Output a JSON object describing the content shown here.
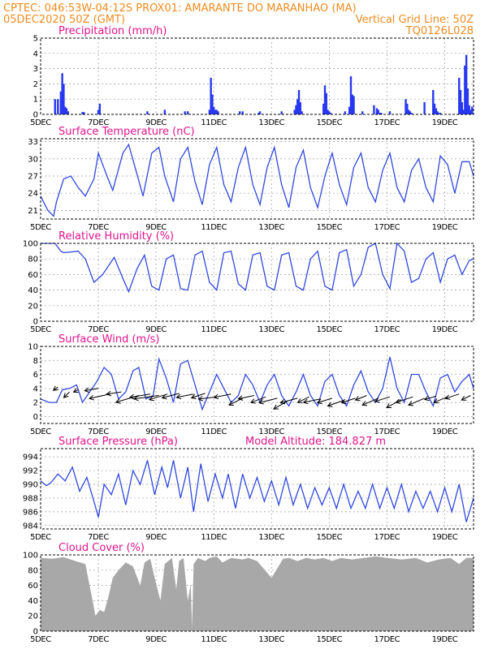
{
  "header": {
    "left_line1": "CPTEC:  046:53W-04:12S   PROX01: AMARANTE DO MARANHAO (MA)",
    "left_line2": "05DEC2020 50Z (GMT)",
    "right_line2": "Vertical Grid Line: 50Z",
    "right_line3": "TQ0126L028"
  },
  "colors": {
    "header": "#f08c1e",
    "panel_title": "#e0148c",
    "series": "#3048e0",
    "bars": "#2838f0",
    "cloud": "#a8a8a8"
  },
  "x_axis": {
    "ticks": [
      "5DEC",
      "7DEC",
      "9DEC",
      "11DEC",
      "13DEC",
      "15DEC",
      "17DEC",
      "19DEC"
    ],
    "range_days": [
      5.0,
      20.0
    ]
  },
  "chart_data": [
    {
      "id": "precip",
      "type": "bar",
      "title": "Precipitation (mm/h)",
      "ylim": [
        0,
        5
      ],
      "yticks": [
        0,
        1,
        2,
        3,
        4,
        5
      ],
      "series": [
        {
          "x": [
            5.5,
            5.6,
            5.7,
            5.75,
            5.8,
            5.85,
            5.9,
            5.95,
            6.45,
            6.5,
            7.0,
            7.05,
            8.7,
            9.3,
            10.0,
            10.1,
            10.85,
            10.9,
            10.95,
            11.0,
            11.05,
            11.1,
            11.15,
            11.9,
            12.0,
            12.55,
            12.6,
            13.35,
            13.8,
            13.85,
            13.9,
            13.95,
            14.0,
            14.05,
            14.8,
            14.85,
            14.9,
            14.95,
            15.0,
            15.05,
            15.55,
            15.7,
            15.75,
            15.8,
            15.85,
            16.15,
            16.55,
            16.65,
            16.7,
            16.75,
            16.8,
            17.1,
            17.65,
            17.7,
            17.75,
            17.8,
            17.85,
            18.3,
            18.6,
            18.65,
            18.7,
            18.75,
            18.8,
            18.85,
            19.5,
            19.55,
            19.6,
            19.65,
            19.7,
            19.75,
            19.8,
            19.85,
            19.9,
            19.95
          ],
          "values": [
            1.0,
            1.0,
            1.5,
            2.7,
            2.0,
            0.5,
            0.4,
            0.2,
            0.15,
            0.15,
            0.3,
            0.7,
            0.2,
            0.3,
            0.2,
            0.2,
            0.3,
            2.4,
            1.3,
            0.5,
            0.3,
            0.3,
            0.2,
            0.2,
            0.2,
            0.1,
            0.2,
            0.2,
            0.3,
            0.6,
            1.0,
            1.6,
            0.8,
            0.2,
            0.7,
            1.9,
            1.4,
            0.3,
            0.2,
            0.1,
            0.2,
            0.5,
            2.5,
            1.3,
            1.2,
            0.2,
            0.6,
            0.4,
            0.3,
            0.1,
            0.1,
            0.2,
            1.0,
            0.7,
            0.3,
            0.2,
            0.1,
            0.8,
            1.6,
            0.7,
            0.4,
            0.2,
            0.1,
            0.1,
            2.4,
            1.6,
            0.8,
            0.3,
            3.2,
            3.9,
            1.7,
            0.6,
            0.3,
            0.5
          ]
        }
      ],
      "grid": true
    },
    {
      "id": "temp",
      "type": "line",
      "title": "Surface Temperature (nC)",
      "ylim": [
        19.5,
        33.5
      ],
      "yticks": [
        21,
        24,
        27,
        30,
        33
      ],
      "series": [
        {
          "x": [
            5.0,
            5.25,
            5.45,
            5.55,
            5.8,
            6.05,
            6.3,
            6.55,
            6.85,
            7.0,
            7.3,
            7.5,
            7.85,
            8.05,
            8.3,
            8.55,
            8.85,
            9.1,
            9.3,
            9.6,
            9.85,
            10.1,
            10.35,
            10.6,
            10.85,
            11.1,
            11.35,
            11.6,
            11.85,
            12.1,
            12.35,
            12.6,
            12.85,
            13.1,
            13.35,
            13.6,
            13.85,
            14.1,
            14.35,
            14.6,
            14.85,
            15.1,
            15.35,
            15.6,
            15.85,
            16.1,
            16.35,
            16.6,
            16.85,
            17.1,
            17.35,
            17.6,
            17.85,
            18.1,
            18.35,
            18.6,
            18.85,
            19.1,
            19.35,
            19.6,
            19.85,
            20.0
          ],
          "values": [
            23.5,
            21.0,
            20.0,
            22.5,
            26.5,
            27.0,
            25.0,
            23.5,
            26.5,
            31.0,
            27.0,
            24.5,
            31.0,
            32.5,
            28.0,
            23.5,
            31.0,
            32.0,
            27.0,
            22.5,
            30.0,
            32.0,
            26.0,
            22.0,
            29.0,
            32.0,
            25.5,
            22.5,
            28.5,
            32.0,
            25.5,
            22.0,
            28.5,
            32.0,
            25.5,
            21.5,
            28.5,
            31.5,
            25.0,
            21.5,
            27.0,
            31.0,
            25.5,
            22.0,
            28.5,
            31.0,
            25.0,
            22.5,
            28.0,
            31.0,
            25.0,
            22.5,
            28.0,
            30.0,
            25.0,
            22.5,
            30.5,
            29.0,
            24.0,
            29.5,
            29.5,
            27.0
          ]
        }
      ],
      "grid": true
    },
    {
      "id": "rh",
      "type": "line",
      "title": "Relative Humidity (%)",
      "ylim": [
        0,
        100
      ],
      "yticks": [
        0,
        20,
        40,
        60,
        80,
        100
      ],
      "series": [
        {
          "x": [
            5.0,
            5.5,
            5.7,
            5.8,
            6.3,
            6.55,
            6.85,
            7.15,
            7.55,
            7.85,
            8.05,
            8.35,
            8.6,
            8.85,
            9.1,
            9.35,
            9.6,
            9.85,
            10.1,
            10.35,
            10.6,
            10.85,
            11.1,
            11.35,
            11.6,
            11.85,
            12.1,
            12.35,
            12.6,
            12.85,
            13.1,
            13.35,
            13.6,
            13.85,
            14.1,
            14.35,
            14.6,
            14.85,
            15.1,
            15.35,
            15.6,
            15.85,
            16.1,
            16.35,
            16.6,
            16.85,
            17.1,
            17.35,
            17.6,
            17.85,
            18.1,
            18.35,
            18.6,
            18.85,
            19.1,
            19.35,
            19.6,
            19.85,
            20.0
          ],
          "values": [
            100,
            100,
            90,
            88,
            90,
            80,
            50,
            60,
            82,
            55,
            38,
            68,
            85,
            45,
            40,
            80,
            85,
            42,
            40,
            85,
            90,
            50,
            40,
            88,
            90,
            48,
            40,
            85,
            88,
            45,
            40,
            85,
            88,
            45,
            40,
            80,
            90,
            45,
            40,
            88,
            92,
            45,
            60,
            95,
            100,
            60,
            42,
            100,
            90,
            50,
            55,
            80,
            88,
            50,
            80,
            85,
            60,
            78,
            80
          ]
        }
      ],
      "grid": true
    },
    {
      "id": "wind",
      "type": "line",
      "title": "Surface Wind (m/s)",
      "ylim": [
        -1,
        10
      ],
      "yticks": [
        0,
        2,
        4,
        6,
        8,
        10
      ],
      "series": [
        {
          "x": [
            5.0,
            5.3,
            5.55,
            5.75,
            6.0,
            6.25,
            6.45,
            6.7,
            6.95,
            7.2,
            7.45,
            7.7,
            7.95,
            8.2,
            8.4,
            8.65,
            8.9,
            9.1,
            9.35,
            9.6,
            9.85,
            10.1,
            10.35,
            10.6,
            10.85,
            11.1,
            11.35,
            11.6,
            11.85,
            12.1,
            12.35,
            12.6,
            12.85,
            13.1,
            13.35,
            13.6,
            13.85,
            14.1,
            14.35,
            14.6,
            14.85,
            15.1,
            15.35,
            15.6,
            15.85,
            16.1,
            16.35,
            16.6,
            16.85,
            17.1,
            17.35,
            17.6,
            17.85,
            18.1,
            18.35,
            18.6,
            18.85,
            19.1,
            19.35,
            19.6,
            19.85,
            20.0
          ],
          "values": [
            2.5,
            2.0,
            2.0,
            3.8,
            4.0,
            4.5,
            2.0,
            3.5,
            5.0,
            7.0,
            6.0,
            2.5,
            3.5,
            6.5,
            7.0,
            2.5,
            3.0,
            8.2,
            5.5,
            2.0,
            7.5,
            8.0,
            4.5,
            1.0,
            3.5,
            6.0,
            4.0,
            2.0,
            3.0,
            6.0,
            4.5,
            2.0,
            4.5,
            6.0,
            3.0,
            1.5,
            3.5,
            6.0,
            3.0,
            1.5,
            5.0,
            6.0,
            3.0,
            1.5,
            4.5,
            6.5,
            3.5,
            2.0,
            4.0,
            8.5,
            4.0,
            2.0,
            6.0,
            6.0,
            3.5,
            1.5,
            5.5,
            6.0,
            3.5,
            5.0,
            6.0,
            4.0
          ]
        }
      ],
      "grid": true
    },
    {
      "id": "pres",
      "type": "line",
      "title": "Surface Pressure (hPa)",
      "annotation": "Model Altitude: 184.827 m",
      "ylim": [
        983.5,
        995.2
      ],
      "yticks": [
        984,
        986,
        988,
        990,
        992,
        994
      ],
      "series": [
        {
          "x": [
            5.0,
            5.2,
            5.35,
            5.6,
            5.85,
            6.1,
            6.35,
            6.6,
            6.85,
            7.0,
            7.2,
            7.45,
            7.7,
            7.95,
            8.2,
            8.45,
            8.7,
            8.95,
            9.2,
            9.4,
            9.6,
            9.85,
            10.1,
            10.3,
            10.55,
            10.8,
            11.05,
            11.3,
            11.5,
            11.75,
            12.0,
            12.25,
            12.5,
            12.75,
            13.0,
            13.25,
            13.5,
            13.75,
            14.0,
            14.25,
            14.5,
            14.75,
            15.0,
            15.25,
            15.5,
            15.75,
            16.0,
            16.25,
            16.5,
            16.75,
            17.0,
            17.25,
            17.5,
            17.75,
            18.0,
            18.25,
            18.5,
            18.75,
            19.0,
            19.25,
            19.5,
            19.75,
            20.0
          ],
          "values": [
            990.5,
            989.8,
            990.2,
            991.5,
            990.5,
            992.5,
            989.0,
            991.0,
            987.5,
            985.2,
            990.0,
            988.5,
            991.5,
            987.0,
            992.0,
            990.0,
            993.5,
            988.5,
            992.5,
            989.5,
            993.5,
            988.0,
            992.5,
            986.0,
            993.0,
            987.5,
            991.5,
            988.0,
            991.5,
            986.5,
            991.5,
            988.0,
            991.0,
            987.5,
            990.5,
            987.0,
            991.0,
            987.0,
            990.0,
            986.5,
            989.5,
            987.0,
            989.5,
            986.5,
            990.0,
            986.5,
            989.0,
            986.5,
            990.0,
            986.5,
            989.5,
            986.5,
            990.0,
            986.0,
            989.0,
            986.5,
            989.0,
            986.0,
            989.5,
            986.0,
            990.0,
            984.5,
            988.0
          ]
        }
      ],
      "grid": true
    },
    {
      "id": "cloud",
      "type": "area",
      "title": "Cloud Cover (%)",
      "ylim": [
        0,
        100
      ],
      "yticks": [
        0,
        20,
        40,
        60,
        80,
        100
      ],
      "series": [
        {
          "x": [
            5.0,
            5.4,
            5.8,
            6.2,
            6.55,
            6.8,
            6.9,
            7.05,
            7.2,
            7.35,
            7.5,
            7.7,
            7.95,
            8.2,
            8.45,
            8.6,
            8.8,
            8.95,
            9.15,
            9.3,
            9.55,
            9.7,
            9.8,
            9.95,
            10.1,
            10.2,
            10.25,
            10.3,
            10.45,
            10.7,
            10.85,
            11.1,
            11.3,
            11.6,
            12.0,
            12.2,
            12.5,
            13.0,
            13.4,
            13.6,
            13.9,
            14.2,
            14.5,
            14.8,
            15.1,
            15.4,
            15.8,
            16.2,
            16.6,
            17.0,
            17.5,
            18.0,
            18.4,
            18.8,
            19.2,
            19.5,
            19.75,
            20.0
          ],
          "values": [
            96,
            95,
            97,
            92,
            88,
            40,
            20,
            28,
            25,
            45,
            70,
            80,
            90,
            85,
            60,
            90,
            95,
            70,
            40,
            88,
            96,
            55,
            92,
            96,
            40,
            62,
            4,
            88,
            96,
            92,
            96,
            98,
            90,
            96,
            94,
            96,
            92,
            70,
            95,
            96,
            92,
            96,
            94,
            96,
            92,
            96,
            94,
            96,
            98,
            96,
            94,
            96,
            90,
            94,
            96,
            88,
            96,
            96
          ]
        }
      ],
      "grid": true
    },
    {
      "id": "wind_vectors",
      "type": "scatter",
      "series": [
        {
          "x": [
            5.6,
            6.0,
            6.3,
            7.0,
            7.4,
            7.8,
            8.4,
            8.8,
            9.1,
            9.4,
            9.8,
            10.3,
            10.7,
            11.1,
            11.6,
            12.0,
            12.4,
            12.8,
            13.2,
            13.55,
            13.9,
            14.3,
            14.7,
            15.1,
            15.5,
            15.9,
            16.3,
            16.7,
            17.1,
            17.5,
            17.9,
            18.3,
            18.7,
            19.1,
            19.5,
            19.9
          ],
          "values": [
            4.2,
            3.5,
            3.8,
            4.0,
            3.2,
            3.5,
            3.0,
            3.2,
            3.0,
            3.2,
            3.3,
            3.2,
            3.3,
            2.8,
            3.2,
            2.6,
            3.0,
            2.8,
            2.6,
            2.2,
            2.6,
            2.8,
            2.5,
            2.6,
            2.3,
            2.6,
            3.0,
            2.6,
            2.8,
            2.4,
            2.8,
            2.6,
            2.9,
            2.8,
            3.2,
            3.0
          ]
        }
      ],
      "u": [
        0.4,
        0.5,
        0.4,
        1.2,
        1.8,
        1.3,
        2.0,
        1.8,
        2.2,
        1.6,
        1.5,
        1.5,
        1.2,
        1.6,
        1.5,
        1.2,
        1.4,
        1.3,
        1.6,
        1.2,
        1.5,
        1.0,
        1.5,
        1.3,
        1.4,
        1.2,
        1.0,
        1.4,
        1.3,
        1.3,
        1.5,
        1.4,
        1.0,
        1.2,
        1.2,
        0.8
      ],
      "v": [
        0.3,
        0.5,
        0.2,
        0.2,
        0.4,
        0.2,
        0.6,
        0.3,
        0.3,
        0.5,
        0.4,
        0.3,
        0.4,
        0.2,
        0.3,
        0.6,
        0.3,
        0.5,
        0.4,
        0.7,
        0.4,
        0.5,
        0.3,
        0.4,
        0.5,
        0.4,
        0.4,
        0.6,
        0.4,
        0.7,
        0.5,
        0.6,
        0.3,
        0.5,
        0.4,
        0.4
      ]
    }
  ]
}
